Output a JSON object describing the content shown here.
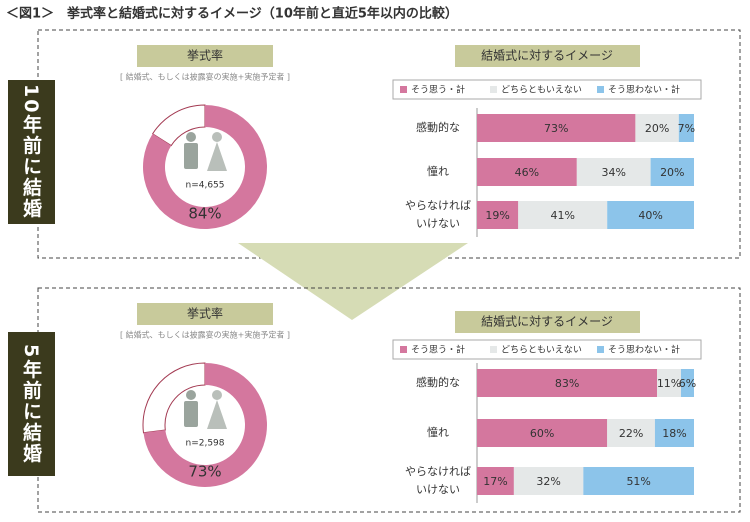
{
  "title": "＜図1＞　挙式率と結婚式に対するイメージ（10年前と直近5年以内の比較）",
  "panels": [
    {
      "label": "10年前に結婚"
    },
    {
      "label": "5年前に結婚"
    }
  ],
  "chart_data": [
    {
      "type": "donut",
      "title": "挙式率",
      "subtitle": "[ 結婚式、もしくは披露宴の実施+実施予定者 ]",
      "note": "n=4,655",
      "values": [
        84
      ],
      "value_labels": [
        "84%"
      ],
      "color": "#d4779e"
    },
    {
      "type": "bar",
      "orientation": "horizontal",
      "stacked": true,
      "title": "結婚式に対するイメージ",
      "categories": [
        "感動的な",
        "憧れ",
        "やらなければいけない"
      ],
      "xlim": [
        0,
        100
      ],
      "series": [
        {
          "name": "そう思う・計",
          "color": "#d4779e",
          "values": [
            73,
            46,
            19
          ],
          "value_labels": [
            "73%",
            "46%",
            "19%"
          ]
        },
        {
          "name": "どちらともいえない",
          "color": "#e5e8e8",
          "values": [
            20,
            34,
            41
          ],
          "value_labels": [
            "20%",
            "34%",
            "41%"
          ]
        },
        {
          "name": "そう思わない・計",
          "color": "#8cc4ea",
          "values": [
            7,
            20,
            40
          ],
          "value_labels": [
            "7%",
            "20%",
            "40%"
          ]
        }
      ]
    },
    {
      "type": "donut",
      "title": "挙式率",
      "subtitle": "[ 結婚式、もしくは披露宴の実施+実施予定者 ]",
      "note": "n=2,598",
      "values": [
        73
      ],
      "value_labels": [
        "73%"
      ],
      "color": "#d4779e"
    },
    {
      "type": "bar",
      "orientation": "horizontal",
      "stacked": true,
      "title": "結婚式に対するイメージ",
      "categories": [
        "感動的な",
        "憧れ",
        "やらなければいけない"
      ],
      "xlim": [
        0,
        100
      ],
      "series": [
        {
          "name": "そう思う・計",
          "color": "#d4779e",
          "values": [
            83,
            60,
            17
          ],
          "value_labels": [
            "83%",
            "60%",
            "17%"
          ]
        },
        {
          "name": "どちらともいえない",
          "color": "#e5e8e8",
          "values": [
            11,
            22,
            32
          ],
          "value_labels": [
            "11%",
            "22%",
            "32%"
          ]
        },
        {
          "name": "そう思わない・計",
          "color": "#8cc4ea",
          "values": [
            6,
            18,
            51
          ],
          "value_labels": [
            "6%",
            "18%",
            "51%"
          ]
        }
      ]
    }
  ]
}
